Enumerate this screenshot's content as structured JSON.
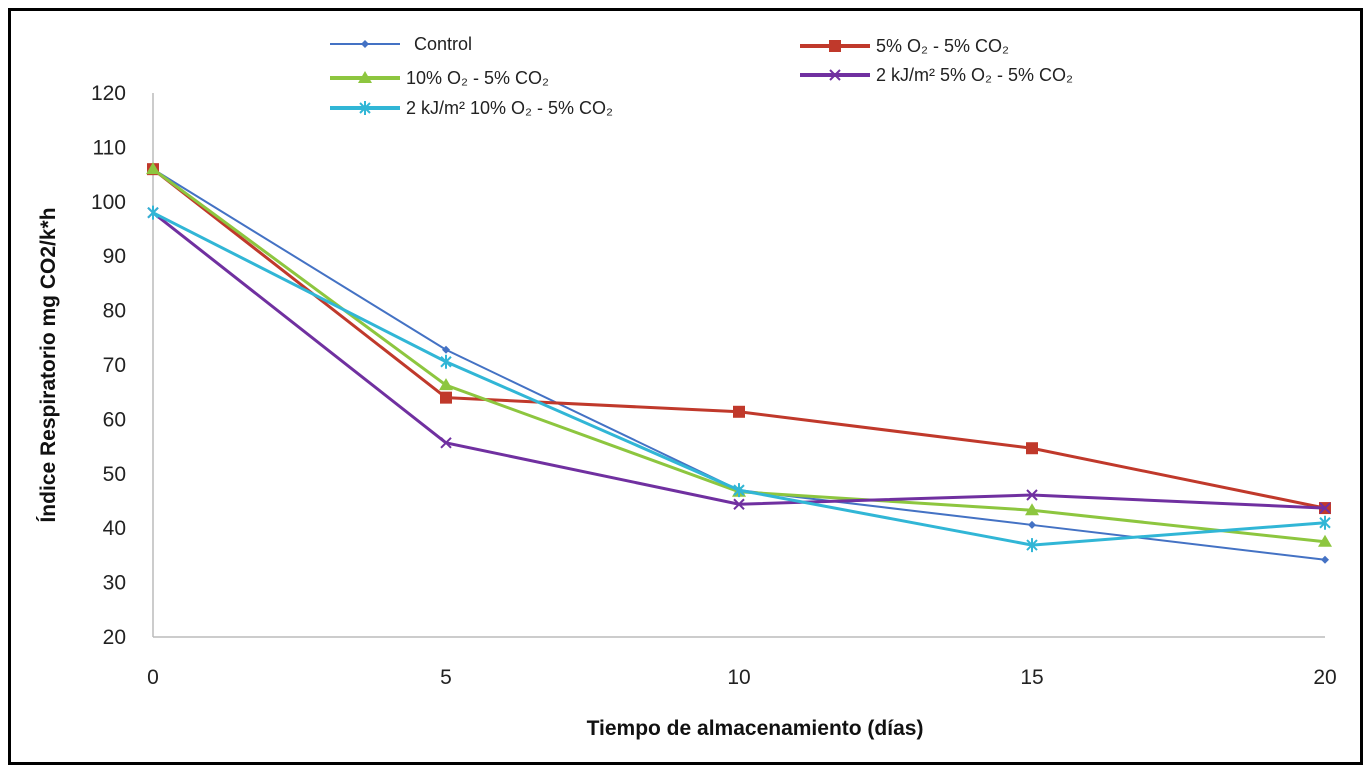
{
  "chart_data": {
    "type": "line",
    "title": "",
    "xlabel": "Tiempo de almacenamiento  (días)",
    "ylabel": "Índice Respiratorio mg CO2/k*h",
    "x": [
      0,
      5,
      10,
      15,
      20
    ],
    "xlim": [
      0,
      20
    ],
    "ylim": [
      20,
      120
    ],
    "xticks": [
      "0",
      "5",
      "10",
      "15",
      "20"
    ],
    "yticks": [
      "20",
      "30",
      "40",
      "50",
      "60",
      "70",
      "80",
      "90",
      "100",
      "110",
      "120"
    ],
    "grid": false,
    "legend_placement": "top",
    "series": [
      {
        "name": "Control",
        "color": "#4472C4",
        "marker": "diamond",
        "values": [
          106,
          72.8,
          47,
          40.6,
          34.2
        ]
      },
      {
        "name": "5% O₂ - 5% CO₂",
        "color": "#C0392B",
        "marker": "square",
        "values": [
          106,
          64,
          61.4,
          54.7,
          43.7
        ]
      },
      {
        "name": "10% O₂ - 5% CO₂",
        "color": "#8DC63F",
        "marker": "triangle",
        "values": [
          106,
          66.3,
          46.7,
          43.3,
          37.5
        ]
      },
      {
        "name": "2 kJ/m²  5% O₂ -  5% CO₂",
        "color": "#7030A0",
        "marker": "x",
        "values": [
          98,
          55.7,
          44.4,
          46.1,
          43.7
        ]
      },
      {
        "name": "2 kJ/m²  10% O₂ -  5% CO₂",
        "color": "#31B6D6",
        "marker": "star",
        "values": [
          98,
          70.6,
          47,
          36.9,
          41
        ]
      }
    ]
  }
}
